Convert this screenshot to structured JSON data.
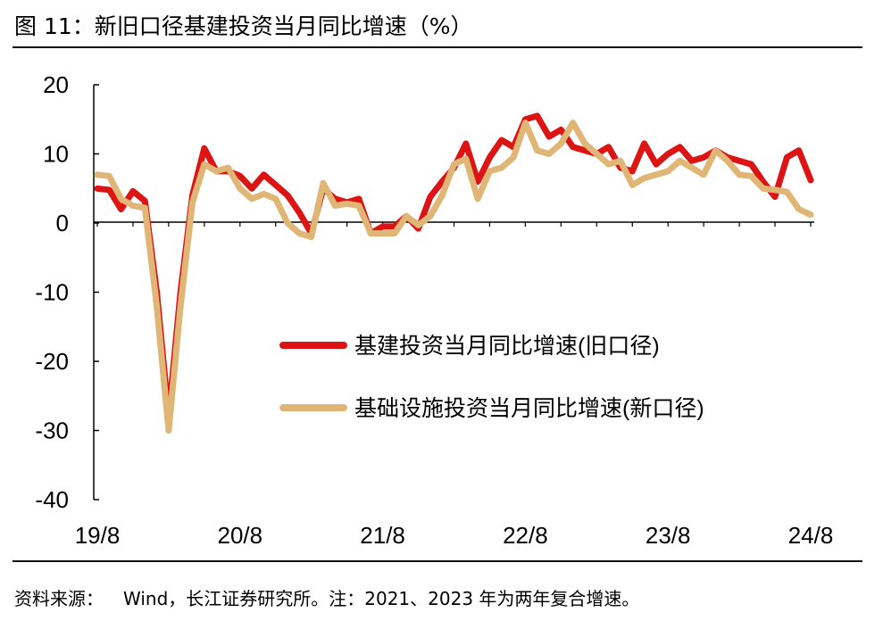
{
  "header": {
    "title": "图 11：新旧口径基建投资当月同比增速（%）"
  },
  "footer": {
    "source_label": "资料来源：",
    "source_text": "Wind，长江证券研究所。注：2021、2023 年为两年复合增速。"
  },
  "colors": {
    "old_series": "#dc1414",
    "new_series": "#dfb676",
    "axis": "#000000"
  },
  "chart_data": {
    "type": "line",
    "ylim": [
      -40,
      20
    ],
    "yticks": [
      "20",
      "10",
      "0",
      "-10",
      "-20",
      "-30",
      "-40"
    ],
    "xticks": [
      "19/8",
      "20/8",
      "21/8",
      "22/8",
      "23/8",
      "24/8"
    ],
    "legend": {
      "placement": "center-right"
    },
    "grid": false,
    "series": [
      {
        "name": "基建投资当月同比增速(旧口径)",
        "color": "#dc1414",
        "points": [
          [
            "19/8",
            5
          ],
          [
            "19/9",
            4.8
          ],
          [
            "19/10",
            2
          ],
          [
            "19/11",
            4.6
          ],
          [
            "19/12",
            3.2
          ],
          [
            "20/1",
            -10
          ],
          [
            "20/2",
            -28
          ],
          [
            "20/3",
            -10
          ],
          [
            "20/4",
            4
          ],
          [
            "20/5",
            10.8
          ],
          [
            "20/6",
            7.5
          ],
          [
            "20/7",
            7.5
          ],
          [
            "20/8",
            6.8
          ],
          [
            "20/9",
            5
          ],
          [
            "20/10",
            7
          ],
          [
            "20/11",
            5.5
          ],
          [
            "20/12",
            4
          ],
          [
            "21/1",
            1.5
          ],
          [
            "21/2",
            -1.5
          ],
          [
            "21/3",
            5
          ],
          [
            "21/4",
            3.5
          ],
          [
            "21/5",
            3
          ],
          [
            "21/6",
            3.5
          ],
          [
            "21/7",
            -1.5
          ],
          [
            "21/8",
            -0.5
          ],
          [
            "21/9",
            -0.5
          ],
          [
            "21/10",
            1
          ],
          [
            "21/11",
            -0.8
          ],
          [
            "21/12",
            3.8
          ],
          [
            "22/1",
            6
          ],
          [
            "22/2",
            8
          ],
          [
            "22/3",
            11.5
          ],
          [
            "22/4",
            6
          ],
          [
            "22/5",
            9.5
          ],
          [
            "22/6",
            12
          ],
          [
            "22/7",
            11
          ],
          [
            "22/8",
            15
          ],
          [
            "22/9",
            15.5
          ],
          [
            "22/10",
            12.5
          ],
          [
            "22/11",
            13.5
          ],
          [
            "22/12",
            11
          ],
          [
            "23/1",
            10.5
          ],
          [
            "23/2",
            10
          ],
          [
            "23/3",
            11
          ],
          [
            "23/4",
            8
          ],
          [
            "23/5",
            7.5
          ],
          [
            "23/6",
            11.5
          ],
          [
            "23/7",
            8.5
          ],
          [
            "23/8",
            10
          ],
          [
            "23/9",
            11
          ],
          [
            "23/10",
            9
          ],
          [
            "23/11",
            9.5
          ],
          [
            "23/12",
            10.5
          ],
          [
            "24/1",
            9.5
          ],
          [
            "24/2",
            9
          ],
          [
            "24/3",
            8.5
          ],
          [
            "24/4",
            6
          ],
          [
            "24/5",
            3.8
          ],
          [
            "24/6",
            9.5
          ],
          [
            "24/7",
            10.5
          ],
          [
            "24/8",
            6.2
          ]
        ]
      },
      {
        "name": "基础设施投资当月同比增速(新口径)",
        "color": "#dfb676",
        "points": [
          [
            "19/8",
            7
          ],
          [
            "19/9",
            6.8
          ],
          [
            "19/10",
            3.5
          ],
          [
            "19/11",
            2.5
          ],
          [
            "19/12",
            2.2
          ],
          [
            "20/1",
            -12
          ],
          [
            "20/2",
            -30
          ],
          [
            "20/3",
            -12
          ],
          [
            "20/4",
            3
          ],
          [
            "20/5",
            8.5
          ],
          [
            "20/6",
            7.5
          ],
          [
            "20/7",
            8
          ],
          [
            "20/8",
            5
          ],
          [
            "20/9",
            3.5
          ],
          [
            "20/10",
            4.2
          ],
          [
            "20/11",
            3.5
          ],
          [
            "20/12",
            0
          ],
          [
            "21/1",
            -1.5
          ],
          [
            "21/2",
            -2
          ],
          [
            "21/3",
            5.8
          ],
          [
            "21/4",
            2.5
          ],
          [
            "21/5",
            2.8
          ],
          [
            "21/6",
            2.5
          ],
          [
            "21/7",
            -1.5
          ],
          [
            "21/8",
            -1.5
          ],
          [
            "21/9",
            -1.5
          ],
          [
            "21/10",
            1
          ],
          [
            "21/11",
            -0.3
          ],
          [
            "21/12",
            1
          ],
          [
            "22/1",
            4
          ],
          [
            "22/2",
            8.5
          ],
          [
            "22/3",
            9.3
          ],
          [
            "22/4",
            3.5
          ],
          [
            "22/5",
            7.5
          ],
          [
            "22/6",
            8
          ],
          [
            "22/7",
            9.5
          ],
          [
            "22/8",
            14.5
          ],
          [
            "22/9",
            10.5
          ],
          [
            "22/10",
            10
          ],
          [
            "22/11",
            11.5
          ],
          [
            "22/12",
            14.5
          ],
          [
            "23/1",
            11.5
          ],
          [
            "23/2",
            10
          ],
          [
            "23/3",
            8.5
          ],
          [
            "23/4",
            9
          ],
          [
            "23/5",
            5.5
          ],
          [
            "23/6",
            6.5
          ],
          [
            "23/7",
            7
          ],
          [
            "23/8",
            7.5
          ],
          [
            "23/9",
            9
          ],
          [
            "23/10",
            8
          ],
          [
            "23/11",
            7
          ],
          [
            "23/12",
            10.5
          ],
          [
            "24/1",
            9
          ],
          [
            "24/2",
            7
          ],
          [
            "24/3",
            6.8
          ],
          [
            "24/4",
            5
          ],
          [
            "24/5",
            4.8
          ],
          [
            "24/6",
            4.5
          ],
          [
            "24/7",
            2
          ],
          [
            "24/8",
            1.2
          ]
        ]
      }
    ]
  }
}
